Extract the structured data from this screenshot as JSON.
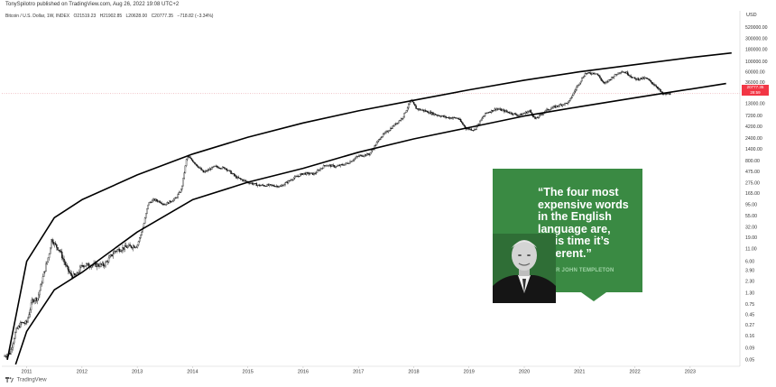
{
  "header": {
    "published": "TonySpilotro published on TradingView.com, Aug 26, 2022 19:08 UTC+2",
    "symbol": "Bitcoin / U.S. Dollar, 1W, INDEX",
    "open": "O21519.23",
    "high": "H21902.85",
    "low": "L20628.00",
    "close": "C20777.35",
    "change": "−718.82 (−3.34%)"
  },
  "footer": {
    "brand": "TradingView"
  },
  "quote": {
    "text": "“The four most expensive words in the English language are, ‘This time it’s different.”",
    "author": "- SIR JOHN TEMPLETON"
  },
  "price_tag": {
    "value": "20777.35",
    "countdown": "28:59"
  },
  "colors": {
    "candle": "#111111",
    "channel": "#000000",
    "price_tag": "#f23645",
    "card": "#3a8a43"
  },
  "chart_data": {
    "type": "line",
    "y_scale": "log",
    "yunit": "USD",
    "ylim": [
      0.04,
      750000
    ],
    "xlim": [
      2010.55,
      2023.9
    ],
    "x_ticks": [
      "2011",
      "2012",
      "2013",
      "2014",
      "2015",
      "2016",
      "2017",
      "2018",
      "2019",
      "2020",
      "2021",
      "2022",
      "2023"
    ],
    "y_ticks": [
      "520000.00",
      "300000.00",
      "180000.00",
      "100000.00",
      "60000.00",
      "36000.00",
      "20777.35",
      "13000.00",
      "7200.00",
      "4200.00",
      "2400.00",
      "1400.00",
      "800.00",
      "475.00",
      "275.00",
      "165.00",
      "95.00",
      "55.00",
      "32.00",
      "19.00",
      "11.00",
      "6.00",
      "3.90",
      "2.30",
      "1.30",
      "0.75",
      "0.45",
      "0.27",
      "0.16",
      "0.09",
      "0.05"
    ],
    "series": [
      {
        "type": "candles",
        "x": [
          2010.6,
          2010.7,
          2010.8,
          2010.9,
          2011.0,
          2011.1,
          2011.2,
          2011.3,
          2011.4,
          2011.45,
          2011.5,
          2011.6,
          2011.7,
          2011.8,
          2011.9,
          2012.0,
          2012.2,
          2012.4,
          2012.6,
          2012.8,
          2013.0,
          2013.1,
          2013.2,
          2013.3,
          2013.4,
          2013.5,
          2013.6,
          2013.7,
          2013.8,
          2013.9,
          2014.0,
          2014.1,
          2014.2,
          2014.4,
          2014.6,
          2014.8,
          2015.0,
          2015.2,
          2015.4,
          2015.6,
          2015.8,
          2016.0,
          2016.2,
          2016.4,
          2016.6,
          2016.8,
          2017.0,
          2017.2,
          2017.4,
          2017.6,
          2017.8,
          2017.95,
          2018.05,
          2018.2,
          2018.4,
          2018.6,
          2018.8,
          2018.95,
          2019.1,
          2019.3,
          2019.5,
          2019.7,
          2019.9,
          2020.1,
          2020.2,
          2020.4,
          2020.6,
          2020.8,
          2020.95,
          2021.1,
          2021.3,
          2021.45,
          2021.6,
          2021.75,
          2021.85,
          2022.0,
          2022.2,
          2022.4,
          2022.5,
          2022.65
        ],
        "values": [
          0.06,
          0.07,
          0.2,
          0.3,
          0.3,
          0.9,
          1.0,
          3.0,
          8.0,
          18.0,
          14.0,
          10.0,
          5.0,
          3.0,
          3.0,
          5.0,
          5.0,
          5.0,
          10.0,
          12.0,
          13.0,
          30.0,
          100.0,
          120.0,
          110.0,
          95.0,
          110.0,
          130.0,
          200.0,
          1000.0,
          800.0,
          600.0,
          450.0,
          600.0,
          550.0,
          350.0,
          280.0,
          240.0,
          240.0,
          230.0,
          330.0,
          430.0,
          420.0,
          650.0,
          600.0,
          700.0,
          1000.0,
          1100.0,
          2500.0,
          4000.0,
          6500.0,
          15000.0,
          10000.0,
          9000.0,
          7500.0,
          6500.0,
          6300.0,
          3800.0,
          3600.0,
          8000.0,
          10000.0,
          8500.0,
          7200.0,
          9000.0,
          6000.0,
          9300.0,
          11500.0,
          13500.0,
          29000.0,
          55000.0,
          57000.0,
          33000.0,
          47000.0,
          62000.0,
          57000.0,
          42000.0,
          44000.0,
          29000.0,
          20000.0,
          20777.35
        ]
      },
      {
        "type": "line",
        "x": [
          2010.65,
          2011.0,
          2011.5,
          2012.0,
          2013.0,
          2014.0,
          2015.0,
          2016.0,
          2017.0,
          2018.0,
          2019.0,
          2020.0,
          2021.0,
          2022.0,
          2023.0,
          2023.75
        ],
        "values": [
          0.05,
          6.0,
          50.0,
          120.0,
          400.0,
          1100.0,
          2500.0,
          5000.0,
          9000.0,
          15000.0,
          25000.0,
          40000.0,
          60000.0,
          85000.0,
          120000.0,
          150000.0
        ]
      },
      {
        "type": "line",
        "x": [
          2010.8,
          2011.0,
          2011.5,
          2012.0,
          2013.0,
          2014.0,
          2015.0,
          2016.0,
          2017.0,
          2018.0,
          2019.0,
          2020.0,
          2021.0,
          2022.0,
          2022.5,
          2023.65
        ],
        "values": [
          0.04,
          0.2,
          1.5,
          3.5,
          25.0,
          120.0,
          280.0,
          550.0,
          1200.0,
          2300.0,
          4000.0,
          7000.0,
          11000.0,
          17000.0,
          21000.0,
          34000.0
        ]
      }
    ]
  }
}
